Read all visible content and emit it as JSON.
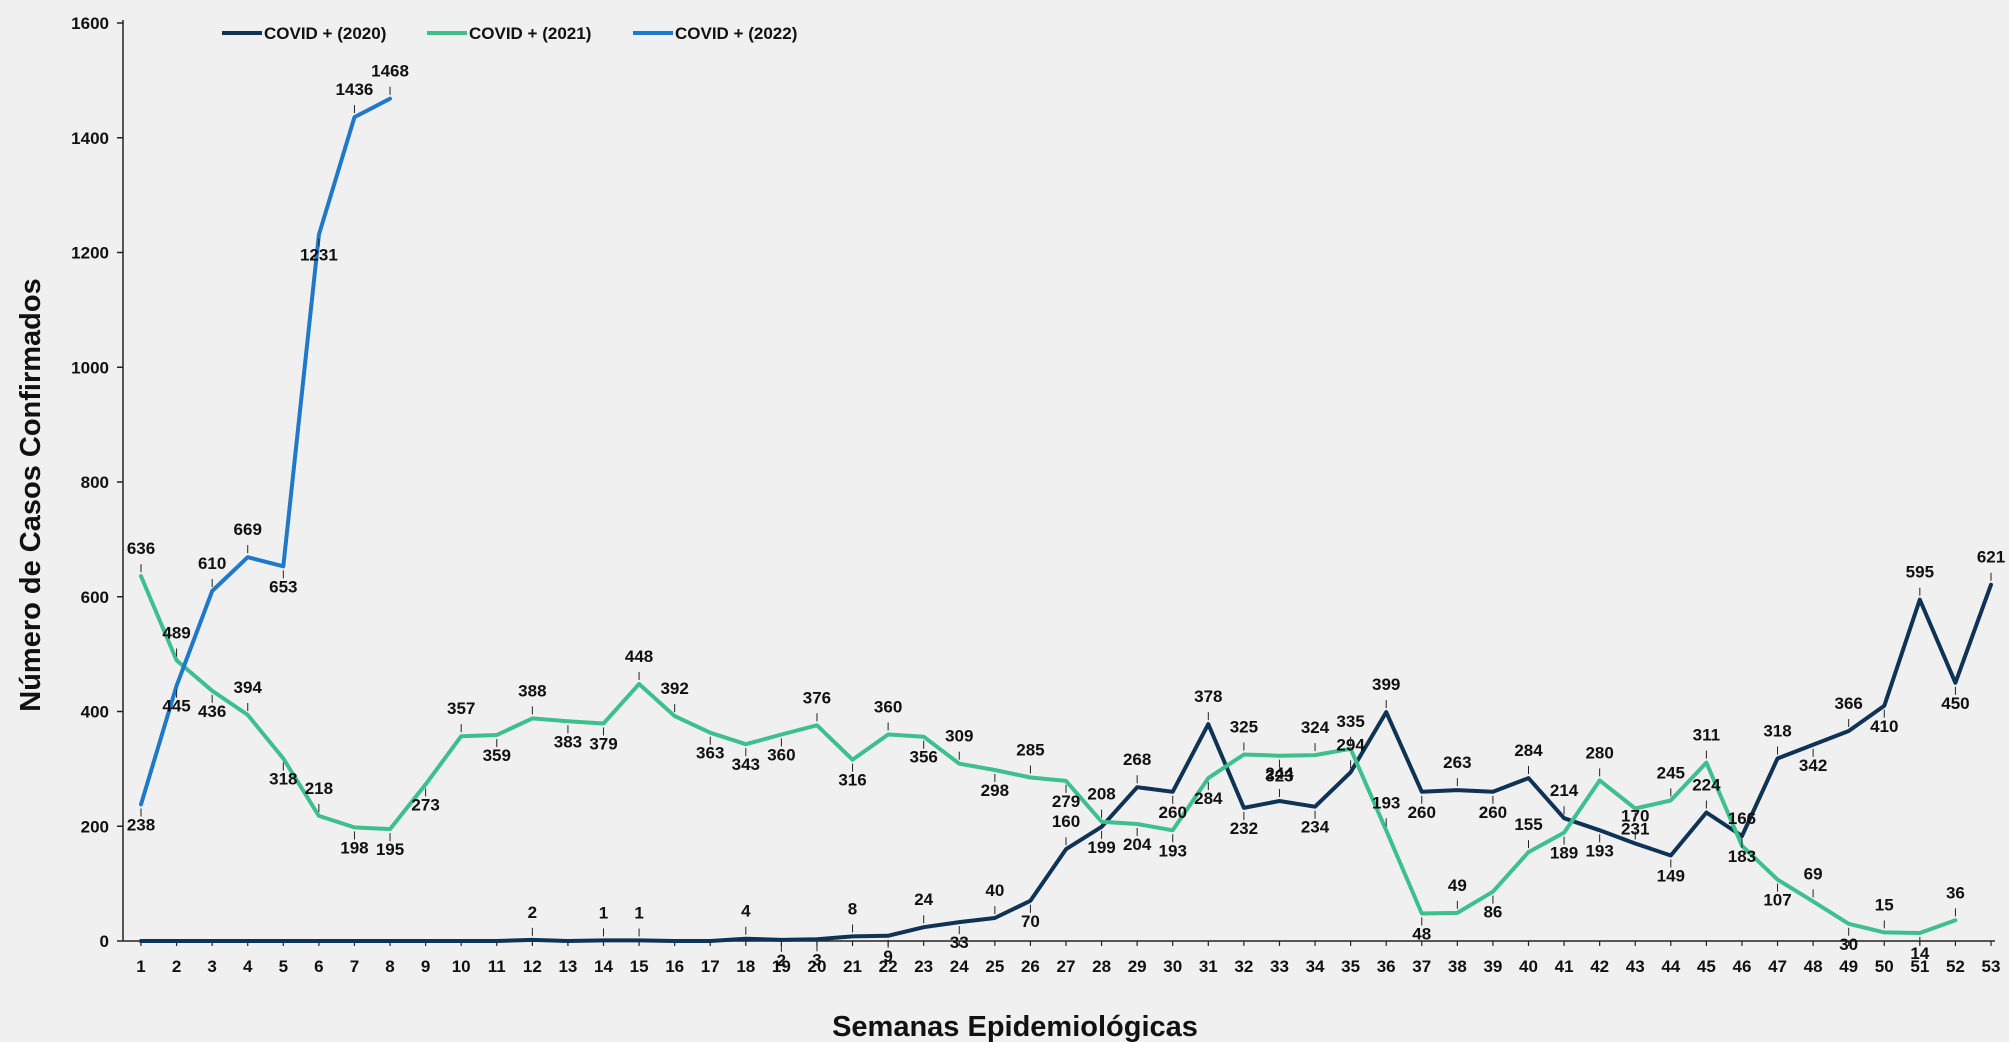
{
  "chart_data": {
    "type": "line",
    "title": "",
    "xlabel": "Semanas Epidemiológicas",
    "ylabel": "Número de Casos Confirmados",
    "ylim": [
      0,
      1600
    ],
    "yticks": [
      0,
      200,
      400,
      600,
      800,
      1000,
      1200,
      1400,
      1600
    ],
    "x": [
      1,
      2,
      3,
      4,
      5,
      6,
      7,
      8,
      9,
      10,
      11,
      12,
      13,
      14,
      15,
      16,
      17,
      18,
      19,
      20,
      21,
      22,
      23,
      24,
      25,
      26,
      27,
      28,
      29,
      30,
      31,
      32,
      33,
      34,
      35,
      36,
      37,
      38,
      39,
      40,
      41,
      42,
      43,
      44,
      45,
      46,
      47,
      48,
      49,
      50,
      51,
      52,
      53
    ],
    "legend_position": "top-left",
    "grid": false,
    "series": [
      {
        "name": "COVID + (2020)",
        "color": "#0e3354",
        "values": [
          0,
          0,
          0,
          0,
          0,
          0,
          0,
          0,
          0,
          0,
          0,
          2,
          0,
          1,
          1,
          0,
          0,
          4,
          2,
          3,
          8,
          9,
          24,
          33,
          40,
          70,
          160,
          199,
          268,
          260,
          378,
          232,
          244,
          234,
          294,
          399,
          260,
          263,
          260,
          284,
          214,
          193,
          170,
          149,
          224,
          183,
          318,
          342,
          366,
          410,
          595,
          450,
          621
        ]
      },
      {
        "name": "COVID + (2021)",
        "color": "#3dbf8e",
        "values": [
          636,
          489,
          436,
          394,
          318,
          218,
          198,
          195,
          273,
          357,
          359,
          388,
          383,
          379,
          448,
          392,
          363,
          343,
          360,
          376,
          316,
          360,
          356,
          309,
          298,
          285,
          279,
          208,
          204,
          193,
          284,
          325,
          323,
          324,
          335,
          193,
          48,
          49,
          86,
          155,
          189,
          280,
          231,
          245,
          311,
          166,
          107,
          69,
          30,
          15,
          14,
          36,
          null
        ]
      },
      {
        "name": "COVID + (2022)",
        "color": "#1f78c8",
        "values": [
          238,
          445,
          610,
          669,
          653,
          1231,
          1436,
          1468,
          null,
          null,
          null,
          null,
          null,
          null,
          null,
          null,
          null,
          null,
          null,
          null,
          null,
          null,
          null,
          null,
          null,
          null,
          null,
          null,
          null,
          null,
          null,
          null,
          null,
          null,
          null,
          null,
          null,
          null,
          null,
          null,
          null,
          null,
          null,
          null,
          null,
          null,
          null,
          null,
          null,
          null,
          null,
          null,
          null
        ]
      }
    ]
  }
}
